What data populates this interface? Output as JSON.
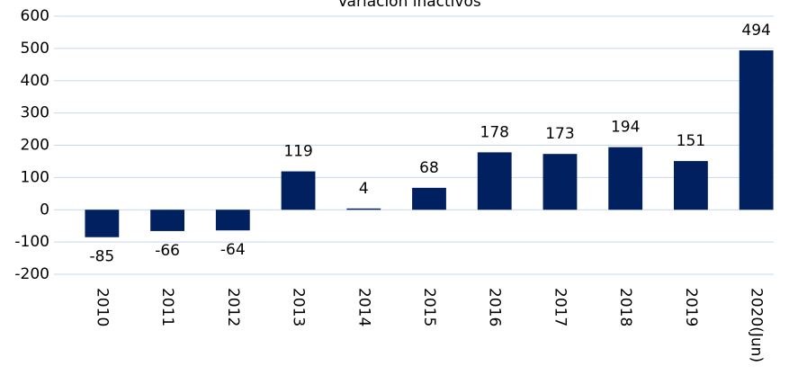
{
  "chart_data": {
    "type": "bar",
    "title": "Variación inactivos",
    "categories": [
      "2010",
      "2011",
      "2012",
      "2013",
      "2014",
      "2015",
      "2016",
      "2017",
      "2018",
      "2019",
      "2020(Jun)"
    ],
    "values": [
      -85,
      -66,
      -64,
      119,
      4,
      68,
      178,
      173,
      194,
      151,
      494
    ],
    "color": "#002060",
    "ylim": [
      -200,
      600
    ],
    "yticks": [
      -200,
      -100,
      0,
      100,
      200,
      300,
      400,
      500,
      600
    ],
    "grid": true
  }
}
